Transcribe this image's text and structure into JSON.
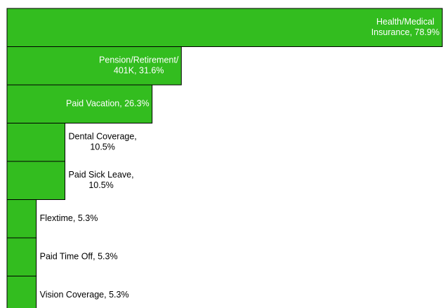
{
  "chart_data": {
    "type": "bar",
    "orientation": "horizontal",
    "color": "#33bd1f",
    "values": [
      78.9,
      31.6,
      26.3,
      10.5,
      10.5,
      5.3,
      5.3,
      5.3
    ],
    "value_labels": [
      [
        "Health/Medical",
        "Insurance, 78.9%"
      ],
      [
        "Pension/Retirement/",
        "401K, 31.6%"
      ],
      [
        "Paid Vacation, 26.3%"
      ],
      [
        "Dental Coverage,",
        "10.5%"
      ],
      [
        "Paid Sick Leave,",
        "10.5%"
      ],
      [
        "Flextime, 5.3%"
      ],
      [
        "Paid Time Off, 5.3%"
      ],
      [
        "Vision Coverage, 5.3%"
      ]
    ]
  }
}
